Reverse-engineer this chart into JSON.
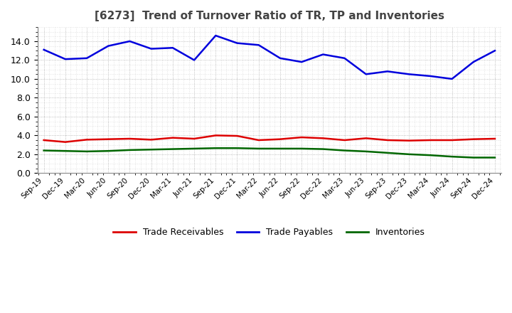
{
  "title": "[6273]  Trend of Turnover Ratio of TR, TP and Inventories",
  "x_labels": [
    "Sep-19",
    "Dec-19",
    "Mar-20",
    "Jun-20",
    "Sep-20",
    "Dec-20",
    "Mar-21",
    "Jun-21",
    "Sep-21",
    "Dec-21",
    "Mar-22",
    "Jun-22",
    "Sep-22",
    "Dec-22",
    "Mar-23",
    "Jun-23",
    "Sep-23",
    "Dec-23",
    "Mar-24",
    "Jun-24",
    "Sep-24",
    "Dec-24"
  ],
  "trade_receivables": [
    3.5,
    3.3,
    3.55,
    3.6,
    3.65,
    3.55,
    3.75,
    3.65,
    4.0,
    3.95,
    3.5,
    3.6,
    3.8,
    3.7,
    3.5,
    3.7,
    3.5,
    3.45,
    3.5,
    3.5,
    3.6,
    3.65
  ],
  "trade_payables": [
    13.1,
    12.1,
    12.2,
    13.5,
    14.0,
    13.2,
    13.3,
    12.0,
    14.6,
    13.8,
    13.6,
    12.2,
    11.8,
    12.6,
    12.2,
    10.5,
    10.8,
    10.5,
    10.3,
    10.0,
    11.8,
    13.0
  ],
  "inventories": [
    2.4,
    2.35,
    2.3,
    2.35,
    2.45,
    2.5,
    2.55,
    2.6,
    2.65,
    2.65,
    2.6,
    2.6,
    2.6,
    2.55,
    2.4,
    2.3,
    2.15,
    2.0,
    1.9,
    1.75,
    1.65,
    1.65
  ],
  "ylim": [
    0,
    15.5
  ],
  "yticks": [
    0.0,
    2.0,
    4.0,
    6.0,
    8.0,
    10.0,
    12.0,
    14.0
  ],
  "legend_labels": [
    "Trade Receivables",
    "Trade Payables",
    "Inventories"
  ],
  "line_colors": [
    "#dd0000",
    "#0000dd",
    "#006600"
  ],
  "background_color": "#ffffff",
  "grid_color": "#aaaaaa",
  "title_color": "#444444"
}
